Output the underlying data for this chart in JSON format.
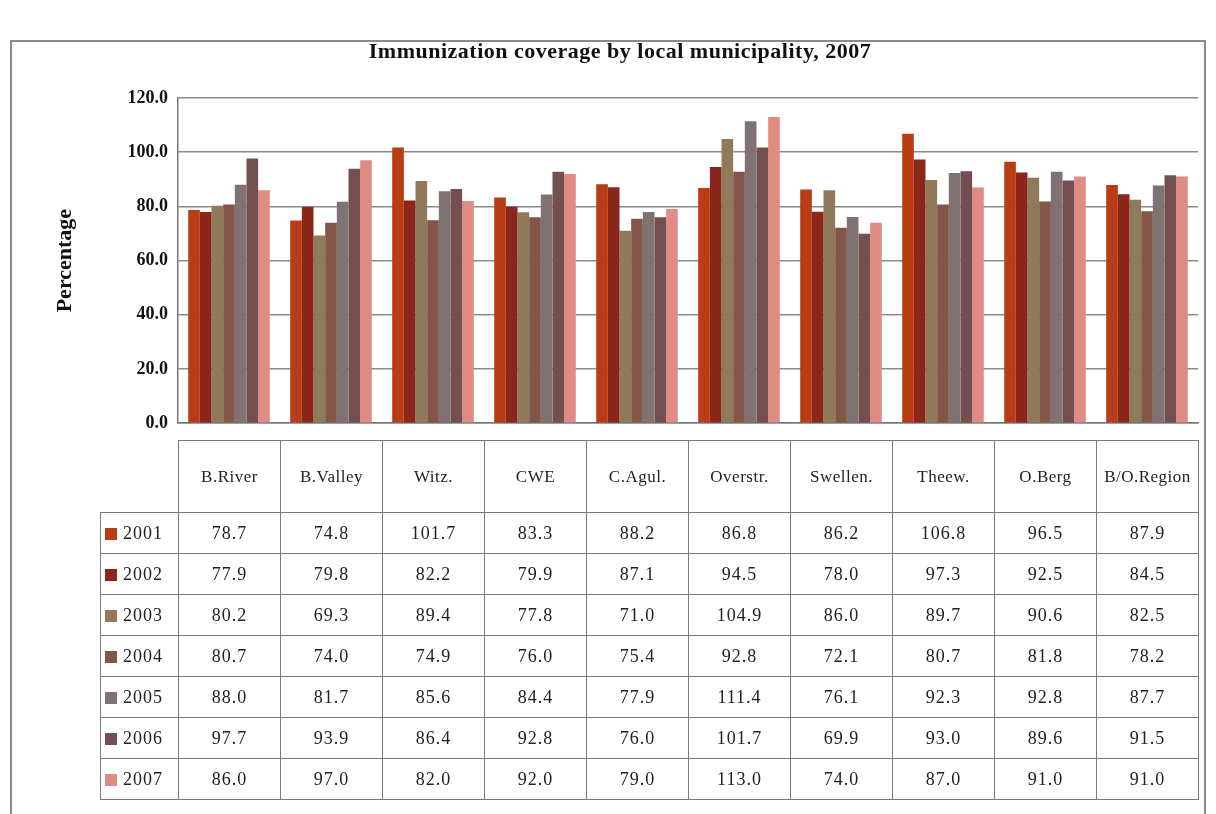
{
  "chart_data": {
    "type": "bar",
    "title": "Immunization coverage by local municipality, 2007",
    "ylabel": "Percentage",
    "categories": [
      "B.River",
      "B.Valley",
      "Witz.",
      "CWE",
      "C.Agul.",
      "Overstr.",
      "Swellen.",
      "Theew.",
      "O.Berg",
      "B/O.Region"
    ],
    "series": [
      {
        "name": "2001",
        "color": "#b93c14",
        "values": [
          78.7,
          74.8,
          101.7,
          83.3,
          88.2,
          86.8,
          86.2,
          106.8,
          96.5,
          87.9
        ],
        "value_labels": [
          "78.7",
          "74.8",
          "101.7",
          "83.3",
          "88.2",
          "86.8",
          "86.2",
          "106.8",
          "96.5",
          "87.9"
        ]
      },
      {
        "name": "2002",
        "color": "#8a261a",
        "values": [
          77.9,
          79.8,
          82.2,
          79.9,
          87.1,
          94.5,
          78.0,
          97.3,
          92.5,
          84.5
        ],
        "value_labels": [
          "77.9",
          "79.8",
          "82.2",
          "79.9",
          "87.1",
          "94.5",
          "78.0",
          "97.3",
          "92.5",
          "84.5"
        ]
      },
      {
        "name": "2003",
        "color": "#8f7b5a",
        "values": [
          80.2,
          69.3,
          89.4,
          77.8,
          71.0,
          104.9,
          86.0,
          89.7,
          90.6,
          82.5
        ],
        "value_labels": [
          "80.2",
          "69.3",
          "89.4",
          "77.8",
          "71.0",
          "104.9",
          "86.0",
          "89.7",
          "90.6",
          "82.5"
        ]
      },
      {
        "name": "2004",
        "color": "#825648",
        "values": [
          80.7,
          74.0,
          74.9,
          76.0,
          75.4,
          92.8,
          72.1,
          80.7,
          81.8,
          78.2
        ],
        "value_labels": [
          "80.7",
          "74.0",
          "74.9",
          "76.0",
          "75.4",
          "92.8",
          "72.1",
          "80.7",
          "81.8",
          "78.2"
        ]
      },
      {
        "name": "2005",
        "color": "#807172",
        "values": [
          88.0,
          81.7,
          85.6,
          84.4,
          77.9,
          111.4,
          76.1,
          92.3,
          92.8,
          87.7
        ],
        "value_labels": [
          "88.0",
          "81.7",
          "85.6",
          "84.4",
          "77.9",
          "111.4",
          "76.1",
          "92.3",
          "92.8",
          "87.7"
        ]
      },
      {
        "name": "2006",
        "color": "#744f4f",
        "values": [
          97.7,
          93.9,
          86.4,
          92.8,
          76.0,
          101.7,
          69.9,
          93.0,
          89.6,
          91.5
        ],
        "value_labels": [
          "97.7",
          "93.9",
          "86.4",
          "92.8",
          "76.0",
          "101.7",
          "69.9",
          "93.0",
          "89.6",
          "91.5"
        ]
      },
      {
        "name": "2007",
        "color": "#e08c84",
        "values": [
          86.0,
          97.0,
          82.0,
          92.0,
          79.0,
          113.0,
          74.0,
          87.0,
          91.0,
          91.0
        ],
        "value_labels": [
          "86.0",
          "97.0",
          "82.0",
          "92.0",
          "79.0",
          "113.0",
          "74.0",
          "87.0",
          "91.0",
          "91.0"
        ]
      }
    ],
    "ylim": [
      0,
      120
    ],
    "yticks": [
      {
        "value": 0,
        "label": "0.0"
      },
      {
        "value": 20,
        "label": "20.0"
      },
      {
        "value": 40,
        "label": "40.0"
      },
      {
        "value": 60,
        "label": "60.0"
      },
      {
        "value": 80,
        "label": "80.0"
      },
      {
        "value": 100,
        "label": "100.0"
      },
      {
        "value": 120,
        "label": "120.0"
      }
    ],
    "grid": "y",
    "legend": "bottom"
  }
}
